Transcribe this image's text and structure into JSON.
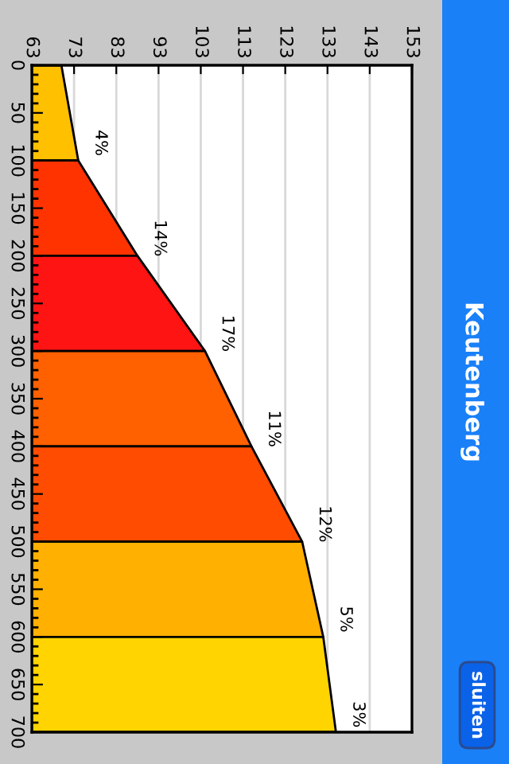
{
  "chart_data": {
    "type": "area",
    "orientation": "horizontal",
    "title": "Keutenberg",
    "series": [
      {
        "color": "#ffc000",
        "x": [
          0,
          100
        ],
        "values": [
          70,
          74
        ]
      },
      {
        "color": "#ff3300",
        "x": [
          100,
          200
        ],
        "values": [
          74,
          88
        ]
      },
      {
        "color": "#ff1414",
        "x": [
          200,
          300
        ],
        "values": [
          88,
          104
        ]
      },
      {
        "color": "#ff6000",
        "x": [
          300,
          400
        ],
        "values": [
          104,
          115
        ]
      },
      {
        "color": "#ff4c00",
        "x": [
          400,
          500
        ],
        "values": [
          115,
          127
        ]
      },
      {
        "color": "#ffb000",
        "x": [
          500,
          600
        ],
        "values": [
          127,
          132
        ]
      },
      {
        "color": "#ffd400",
        "x": [
          600,
          700
        ],
        "values": [
          132,
          135
        ]
      }
    ],
    "xlim": [
      63,
      153
    ],
    "xticks": [
      63,
      73,
      83,
      93,
      103,
      113,
      123,
      133,
      143,
      153
    ],
    "ylim": [
      700,
      0
    ],
    "yticks": [
      0,
      {
        "value": 10,
        "label": null
      },
      {
        "value": 20,
        "label": null
      },
      {
        "value": 30,
        "label": null
      },
      {
        "value": 40,
        "label": null
      },
      50,
      {
        "value": 60,
        "label": null
      },
      {
        "value": 70,
        "label": null
      },
      {
        "value": 80,
        "label": null
      },
      {
        "value": 90,
        "label": null
      },
      100,
      {
        "value": 110,
        "label": null
      },
      {
        "value": 120,
        "label": null
      },
      {
        "value": 130,
        "label": null
      },
      {
        "value": 140,
        "label": null
      },
      150,
      {
        "value": 160,
        "label": null
      },
      {
        "value": 170,
        "label": null
      },
      {
        "value": 180,
        "label": null
      },
      {
        "value": 190,
        "label": null
      },
      200,
      {
        "value": 210,
        "label": null
      },
      {
        "value": 220,
        "label": null
      },
      {
        "value": 230,
        "label": null
      },
      {
        "value": 240,
        "label": null
      },
      250,
      {
        "value": 260,
        "label": null
      },
      {
        "value": 270,
        "label": null
      },
      {
        "value": 280,
        "label": null
      },
      {
        "value": 290,
        "label": null
      },
      300,
      {
        "value": 310,
        "label": null
      },
      {
        "value": 320,
        "label": null
      },
      {
        "value": 330,
        "label": null
      },
      {
        "value": 340,
        "label": null
      },
      350,
      {
        "value": 360,
        "label": null
      },
      {
        "value": 370,
        "label": null
      },
      {
        "value": 380,
        "label": null
      },
      {
        "value": 390,
        "label": null
      },
      400,
      {
        "value": 410,
        "label": null
      },
      {
        "value": 420,
        "label": null
      },
      {
        "value": 430,
        "label": null
      },
      {
        "value": 440,
        "label": null
      },
      450,
      {
        "value": 460,
        "label": null
      },
      {
        "value": 470,
        "label": null
      },
      {
        "value": 480,
        "label": null
      },
      {
        "value": 490,
        "label": null
      },
      500,
      {
        "value": 510,
        "label": null
      },
      {
        "value": 520,
        "label": null
      },
      {
        "value": 530,
        "label": null
      },
      {
        "value": 540,
        "label": null
      },
      550,
      {
        "value": 560,
        "label": null
      },
      {
        "value": 570,
        "label": null
      },
      {
        "value": 580,
        "label": null
      },
      {
        "value": 590,
        "label": null
      },
      600,
      {
        "value": 610,
        "label": null
      },
      {
        "value": 620,
        "label": null
      },
      {
        "value": 630,
        "label": null
      },
      {
        "value": 640,
        "label": null
      },
      650,
      {
        "value": 660,
        "label": null
      },
      {
        "value": 670,
        "label": null
      },
      {
        "value": 680,
        "label": null
      },
      {
        "value": 690,
        "label": null
      },
      700
    ],
    "grid": "x",
    "annotations": [
      "4%",
      "14%",
      "17%",
      "11%",
      "12%",
      "5%",
      "3%",
      "sluiten"
    ]
  }
}
